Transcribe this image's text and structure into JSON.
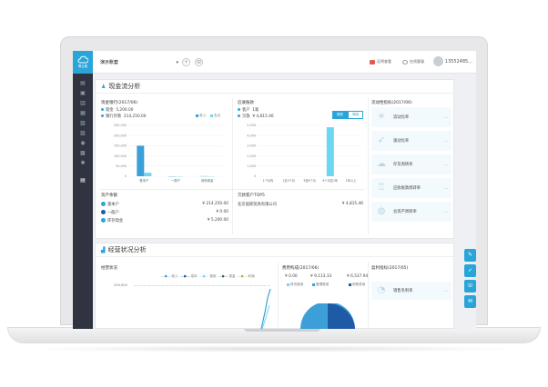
{
  "topbar": {
    "logo_text": "尊云账",
    "company": "演示账套",
    "links": [
      "证明查看",
      "在线客服"
    ],
    "phone": "13552485..."
  },
  "cashflow": {
    "section_title": "现金流分析",
    "cash_bank": {
      "title": "现金银行(2017/06)",
      "rows": [
        {
          "label": "现金",
          "value": "5,200.00"
        },
        {
          "label": "银行存款",
          "value": "214,250.00"
        }
      ],
      "legend": [
        "收入",
        "支出"
      ],
      "y_ticks": [
        "250,000",
        "200,000",
        "150,000",
        "100,000",
        "50,000",
        "0"
      ],
      "categories": [
        "基本户",
        "一般户",
        "其他现金"
      ]
    },
    "receivable": {
      "title": "应收账款",
      "rows": [
        {
          "label": "客户",
          "value": "1家"
        },
        {
          "label": "欠款",
          "value": "¥ 4,815.46"
        }
      ],
      "toggle": [
        "期初",
        "期末"
      ],
      "y_ticks": [
        "5,000",
        "4,000",
        "3,000",
        "2,000",
        "1,000",
        "0"
      ],
      "categories": [
        "1个月内",
        "1至3个月",
        "3至6个月",
        "6个月至1年",
        "1年以上"
      ]
    },
    "accounts": {
      "title": "资产余额",
      "rows": [
        {
          "label": "基本户",
          "value": "¥ 214,250.00"
        },
        {
          "label": "一般户",
          "value": "¥ 0.00"
        },
        {
          "label": "库存现金",
          "value": "¥ 5,200.00"
        }
      ]
    },
    "top_customers": {
      "title": "欠款客户TOP5",
      "rows": [
        {
          "label": "北京国际贸易有限公司",
          "value": "¥ 4,815.46"
        }
      ]
    },
    "ratios": {
      "title": "流动性指标(2017/06)",
      "items": [
        "流动比率",
        "速动比率",
        "存货周转率",
        "应收账款周转率",
        "总资产周转率"
      ]
    }
  },
  "operations": {
    "section_title": "经营状况分析",
    "status": {
      "title": "经营状况",
      "legend": [
        "收入",
        "成本",
        "费用",
        "税金",
        "利润"
      ],
      "y_tick": "200,000"
    },
    "expense": {
      "title": "费用构成(2017/06)",
      "values": [
        "¥ 0.00",
        "¥ 9,113.33",
        "¥ 6,537.94"
      ],
      "labels": [
        "财务费用",
        "管理费用",
        "销售费用"
      ]
    },
    "profit": {
      "title": "盈利指标(2017/05)",
      "label": "销售毛利率"
    }
  },
  "chart_data": {
    "type": "bar",
    "title": "现金银行(2017/06)",
    "categories": [
      "基本户",
      "一般户",
      "其他现金"
    ],
    "series": [
      {
        "name": "收入",
        "values": [
          150000,
          0,
          500
        ]
      },
      {
        "name": "支出",
        "values": [
          17000,
          0,
          0
        ]
      }
    ],
    "ylim": [
      0,
      250000
    ]
  },
  "colors": {
    "accent": "#2aa5d8",
    "bar_primary": "#3c9fd8",
    "bar_secondary": "#6dd6f2",
    "sidebar": "#2f3440"
  }
}
